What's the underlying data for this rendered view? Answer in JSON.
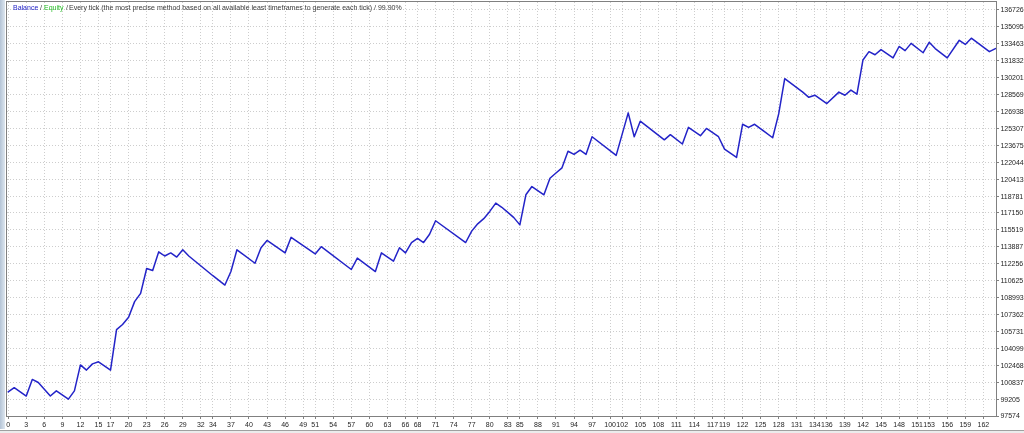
{
  "chart_data": {
    "type": "line",
    "title": "Every tick (the most precise method based on all available least timeframes to generate each tick) / 99.90%",
    "annotations": [
      "/",
      "/"
    ],
    "legend": "top left",
    "grid": true,
    "x": [
      0,
      1,
      3,
      4,
      5,
      7,
      8,
      10,
      11,
      12,
      13,
      14,
      15,
      17,
      18,
      19,
      20,
      21,
      22,
      23,
      24,
      25,
      26,
      27,
      28,
      29,
      30,
      34,
      36,
      37,
      38,
      41,
      42,
      43,
      46,
      47,
      51,
      52,
      57,
      58,
      61,
      62,
      64,
      65,
      66,
      67,
      68,
      69,
      70,
      71,
      76,
      77,
      78,
      79,
      80,
      81,
      82,
      83,
      84,
      85,
      86,
      87,
      89,
      90,
      91,
      92,
      93,
      94,
      95,
      96,
      97,
      101,
      103,
      104,
      105,
      109,
      110,
      112,
      113,
      115,
      116,
      118,
      119,
      121,
      122,
      123,
      124,
      127,
      128,
      129,
      132,
      133,
      134,
      136,
      138,
      139,
      140,
      141,
      142,
      143,
      144,
      145,
      147,
      148,
      149,
      150,
      152,
      153,
      154,
      156,
      158,
      159,
      160,
      163,
      164
    ],
    "series": [
      {
        "name": "Balance",
        "color": "#2323c8",
        "values": [
          99900,
          100300,
          99500,
          101100,
          100800,
          99500,
          100000,
          99200,
          100000,
          102500,
          102000,
          102600,
          102800,
          102000,
          105900,
          106400,
          107100,
          108600,
          109400,
          111800,
          111600,
          113400,
          113000,
          113300,
          112900,
          113600,
          113000,
          111100,
          110200,
          111500,
          113600,
          112300,
          113800,
          114500,
          113300,
          114800,
          113200,
          113900,
          111700,
          112800,
          111500,
          113300,
          112500,
          113800,
          113300,
          114300,
          114700,
          114300,
          115100,
          116400,
          114300,
          115400,
          116100,
          116600,
          117300,
          118100,
          117700,
          117200,
          116700,
          116000,
          118900,
          119700,
          118900,
          120500,
          121000,
          121500,
          123100,
          122800,
          123200,
          122800,
          124500,
          122700,
          126800,
          124500,
          126000,
          124200,
          124700,
          123800,
          125400,
          124600,
          125300,
          124500,
          123300,
          122500,
          125700,
          125400,
          125700,
          124400,
          126700,
          130100,
          128800,
          128300,
          128500,
          127700,
          128800,
          128500,
          129000,
          128600,
          131900,
          132700,
          132400,
          132900,
          132100,
          133200,
          132800,
          133500,
          132600,
          133600,
          133000,
          132100,
          133800,
          133400,
          134000,
          132700,
          133000
        ]
      },
      {
        "name": "Equity",
        "color": "#22bb22",
        "values": [
          null,
          null,
          null,
          null,
          null,
          null,
          null,
          null,
          null,
          null,
          null,
          null,
          null,
          null,
          null,
          null,
          null,
          null,
          null,
          null,
          null,
          null,
          null,
          null,
          null,
          null,
          null,
          null,
          null,
          null,
          null,
          null,
          null,
          null,
          null,
          null,
          null,
          null,
          null,
          null,
          null,
          null,
          null,
          null,
          null,
          null,
          null,
          null,
          null,
          null,
          null,
          null,
          null,
          null,
          null,
          null,
          null,
          null,
          null,
          null,
          null,
          null,
          null,
          null,
          null,
          null,
          null,
          null,
          null,
          null,
          null,
          null,
          null,
          null,
          null,
          null,
          null,
          null,
          null,
          null,
          null,
          null,
          null,
          null,
          null,
          null,
          null,
          null,
          null,
          null,
          null,
          null,
          null,
          null,
          null,
          null,
          null,
          null,
          null,
          null,
          null,
          null,
          null,
          null,
          null,
          null,
          null,
          null,
          null,
          null,
          null,
          null,
          null,
          null,
          null
        ]
      }
    ],
    "xlim": [
      -0.2,
      164.1
    ],
    "xticks": [
      0,
      3,
      6,
      9,
      12,
      15,
      17,
      20,
      23,
      26,
      29,
      32,
      34,
      37,
      40,
      43,
      46,
      49,
      51,
      54,
      57,
      60,
      63,
      66,
      68,
      71,
      74,
      77,
      80,
      83,
      85,
      88,
      91,
      94,
      97,
      100,
      102,
      105,
      108,
      111,
      114,
      117,
      119,
      122,
      125,
      128,
      131,
      134,
      136,
      139,
      142,
      145,
      148,
      151,
      153,
      156,
      159,
      162
    ],
    "ylim": [
      97574,
      137490
    ],
    "yticks": [
      97574,
      99205,
      100837,
      102468,
      104099,
      105731,
      107362,
      108993,
      110625,
      112256,
      113887,
      115519,
      117150,
      118781,
      120413,
      122044,
      123675,
      125307,
      126938,
      128569,
      130201,
      131832,
      133463,
      135095,
      136726
    ]
  }
}
